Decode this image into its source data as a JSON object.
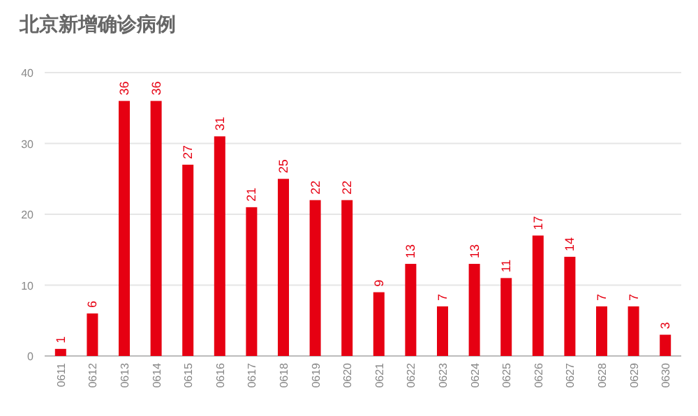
{
  "chart_data": {
    "type": "bar",
    "title": "北京新增确诊病例",
    "categories": [
      "0611",
      "0612",
      "0613",
      "0614",
      "0615",
      "0616",
      "0617",
      "0618",
      "0619",
      "0620",
      "0621",
      "0622",
      "0623",
      "0624",
      "0625",
      "0626",
      "0627",
      "0628",
      "0629",
      "0630"
    ],
    "values": [
      1,
      6,
      36,
      36,
      27,
      31,
      21,
      25,
      22,
      22,
      9,
      13,
      7,
      13,
      11,
      17,
      14,
      7,
      7,
      3
    ],
    "color": "#e60012",
    "ylim": [
      0,
      40
    ],
    "yticks": [
      0,
      10,
      20,
      30,
      40
    ],
    "grid": "y",
    "data_labels": true
  }
}
